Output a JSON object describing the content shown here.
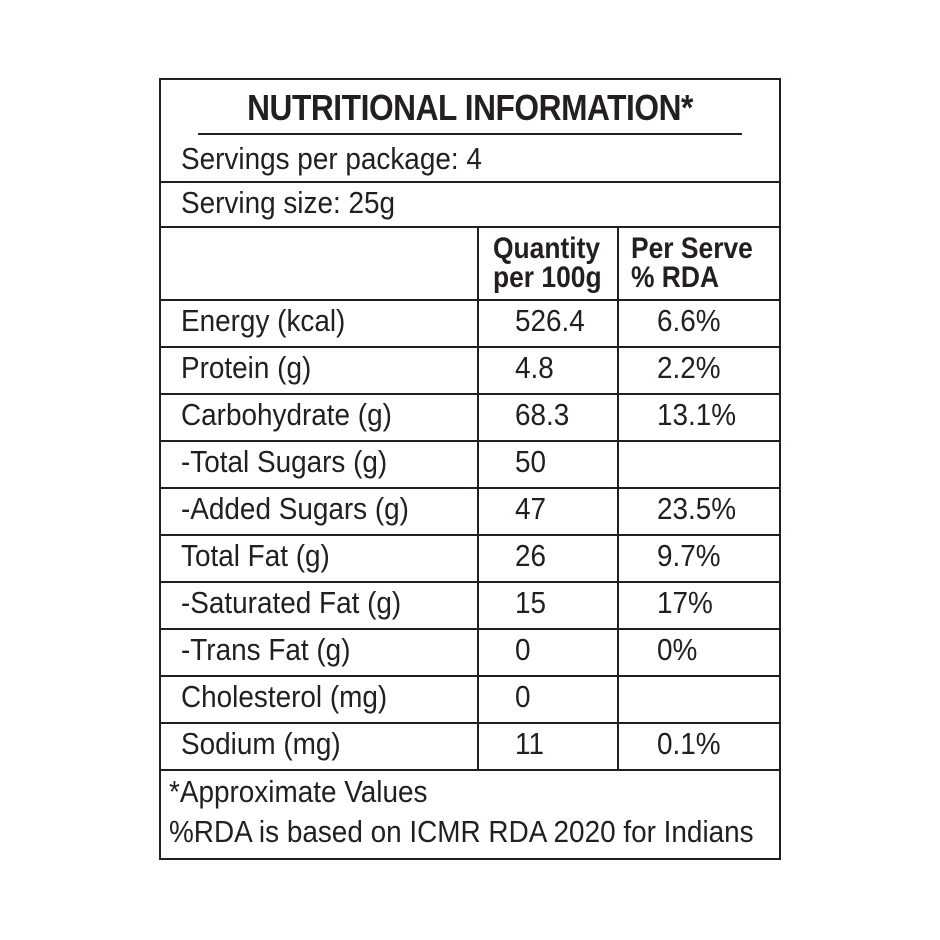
{
  "label": {
    "title": "NUTRITIONAL INFORMATION*",
    "servings_per_package": "Servings per package: 4",
    "serving_size": "Serving size: 25g",
    "columns": {
      "quantity_line1": "Quantity",
      "quantity_line2": "per 100g",
      "rda_line1": "Per Serve",
      "rda_line2": "% RDA"
    },
    "rows": [
      {
        "nutrient": "Energy (kcal)",
        "per_100g": "526.4",
        "rda": "6.6%"
      },
      {
        "nutrient": "Protein (g)",
        "per_100g": "4.8",
        "rda": "2.2%"
      },
      {
        "nutrient": "Carbohydrate (g)",
        "per_100g": "68.3",
        "rda": "13.1%"
      },
      {
        "nutrient": "-Total Sugars (g)",
        "per_100g": "50",
        "rda": ""
      },
      {
        "nutrient": "-Added Sugars (g)",
        "per_100g": "47",
        "rda": "23.5%"
      },
      {
        "nutrient": "Total Fat (g)",
        "per_100g": "26",
        "rda": "9.7%"
      },
      {
        "nutrient": "-Saturated Fat (g)",
        "per_100g": "15",
        "rda": "17%"
      },
      {
        "nutrient": "-Trans Fat (g)",
        "per_100g": "0",
        "rda": "0%"
      },
      {
        "nutrient": "Cholesterol (mg)",
        "per_100g": "0",
        "rda": ""
      },
      {
        "nutrient": "Sodium (mg)",
        "per_100g": "11",
        "rda": "0.1%"
      }
    ],
    "footnote1": "*Approximate Values",
    "footnote2": "%RDA is based on ICMR RDA 2020 for Indians"
  }
}
